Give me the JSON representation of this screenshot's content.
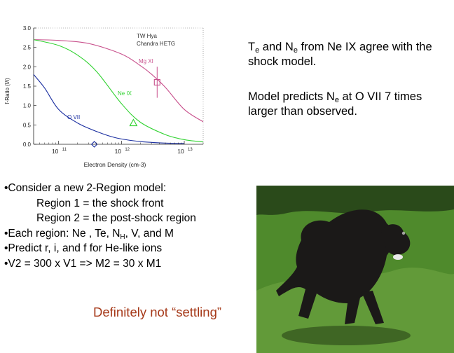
{
  "chart_data": {
    "type": "line",
    "title": "",
    "xlabel": "Electron Density (cm-3)",
    "ylabel": "f-Ratio (f/i)",
    "x_scale": "log",
    "xlim": [
      40000000000.0,
      20000000000000.0
    ],
    "ylim": [
      0,
      3
    ],
    "x_ticks": [
      {
        "value": 100000000000.0,
        "label": "10",
        "exp": "11"
      },
      {
        "value": 1000000000000.0,
        "label": "10",
        "exp": "12"
      },
      {
        "value": 10000000000000.0,
        "label": "10",
        "exp": "13"
      }
    ],
    "y_ticks": [
      {
        "value": 0,
        "label": "0.0"
      },
      {
        "value": 0.5,
        "label": "0.5"
      },
      {
        "value": 1.0,
        "label": "1.0"
      },
      {
        "value": 1.5,
        "label": "1.5"
      },
      {
        "value": 2.0,
        "label": "2.0"
      },
      {
        "value": 2.5,
        "label": "2.5"
      },
      {
        "value": 3.0,
        "label": "3.0"
      }
    ],
    "legend_lines": [
      "TW Hya",
      "Chandra HETG"
    ],
    "series": [
      {
        "name": "Mg XI",
        "color": "#c8508c",
        "x": [
          40000000000.0,
          100000000000.0,
          300000000000.0,
          1000000000000.0,
          2000000000000.0,
          3000000000000.0,
          5000000000000.0,
          10000000000000.0,
          20000000000000.0
        ],
        "y": [
          2.7,
          2.68,
          2.6,
          2.33,
          2.03,
          1.81,
          1.47,
          0.9,
          0.58
        ]
      },
      {
        "name": "Ne IX",
        "color": "#30d230",
        "x": [
          40000000000.0,
          100000000000.0,
          200000000000.0,
          400000000000.0,
          1000000000000.0,
          2000000000000.0,
          5000000000000.0,
          10000000000000.0,
          20000000000000.0
        ],
        "y": [
          2.7,
          2.55,
          2.3,
          1.88,
          1.05,
          0.57,
          0.25,
          0.12,
          0.06
        ]
      },
      {
        "name": "O VII",
        "color": "#1a2ea0",
        "x": [
          40000000000.0,
          60000000000.0,
          100000000000.0,
          200000000000.0,
          400000000000.0,
          800000000000.0,
          2000000000000.0,
          5000000000000.0,
          10000000000000.0
        ],
        "y": [
          1.8,
          1.45,
          0.9,
          0.55,
          0.33,
          0.17,
          0.07,
          0.03,
          0.02
        ]
      }
    ],
    "observations": [
      {
        "series": "Mg XI",
        "x": 3700000000000.0,
        "y": 1.6,
        "y_err": [
          1.2,
          2.0
        ],
        "marker": "square",
        "color": "#c8508c"
      },
      {
        "series": "Ne IX",
        "x": 1550000000000.0,
        "y": 0.55,
        "y_err": [
          0.55,
          0.55
        ],
        "marker": "triangle",
        "color": "#30d230"
      },
      {
        "series": "O VII",
        "x": 370000000000.0,
        "y": 0.0,
        "y_err": [
          0.0,
          0.0
        ],
        "marker": "diamond",
        "color": "#1a2ea0"
      }
    ],
    "grid": false
  },
  "notes": {
    "line1": {
      "pre": "T",
      "sub1": "e",
      "mid": " and N",
      "sub2": "e",
      "post": " from Ne IX  agree with the shock model."
    },
    "line2": {
      "pre": "Model predicts N",
      "sub1": "e",
      "post": "  at O VII  7 times larger than observed."
    }
  },
  "bullets": [
    {
      "text": "•Consider a new 2-Region model:"
    },
    {
      "text": "Region 1 = the shock front",
      "indent": true
    },
    {
      "text": "Region 2 = the post-shock region",
      "indent": true
    },
    {
      "pre": "•Each region: Ne , Te, N",
      "sub": "H",
      "post": ", V, and M"
    },
    {
      "text": "•Predict r, i, and f for  He-like ions"
    },
    {
      "text": "•V2 = 300 x V1   =>  M2 = 30 x M1"
    }
  ],
  "verdict": "Definitely not “settling”",
  "photo": {
    "grass": "#4f8a2c",
    "grass_light": "#79ad4a",
    "hedge": "#2a4a1a",
    "dog": "#1b1918"
  }
}
